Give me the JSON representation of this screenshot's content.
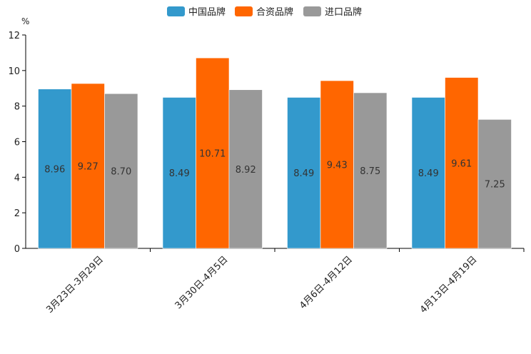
{
  "chart_data": {
    "type": "bar",
    "title": "",
    "xlabel": "",
    "ylabel": "",
    "unit_label": "%",
    "categories": [
      "3月23日-3月29日",
      "3月30日-4月5日",
      "4月6日-4月12日",
      "4月13日-4月19日"
    ],
    "series": [
      {
        "name": "中国品牌",
        "color": "#3399cc",
        "values": [
          8.96,
          8.49,
          8.49,
          8.49
        ],
        "labels": [
          "8.96",
          "8.49",
          "8.49",
          "8.49"
        ]
      },
      {
        "name": "合资品牌",
        "color": "#ff6600",
        "values": [
          9.27,
          10.71,
          9.43,
          9.61
        ],
        "labels": [
          "9.27",
          "10.71",
          "9.43",
          "9.61"
        ]
      },
      {
        "name": "进口品牌",
        "color": "#999999",
        "values": [
          8.7,
          8.92,
          8.75,
          7.25
        ],
        "labels": [
          "8.70",
          "8.92",
          "8.75",
          "7.25"
        ]
      }
    ],
    "ylim": [
      0,
      12
    ],
    "yticks": [
      0,
      2,
      4,
      6,
      8,
      10,
      12
    ],
    "ytick_labels": [
      "0",
      "2",
      "4",
      "6",
      "8",
      "10",
      "12"
    ],
    "grid": false,
    "legend_position": "top-center"
  }
}
